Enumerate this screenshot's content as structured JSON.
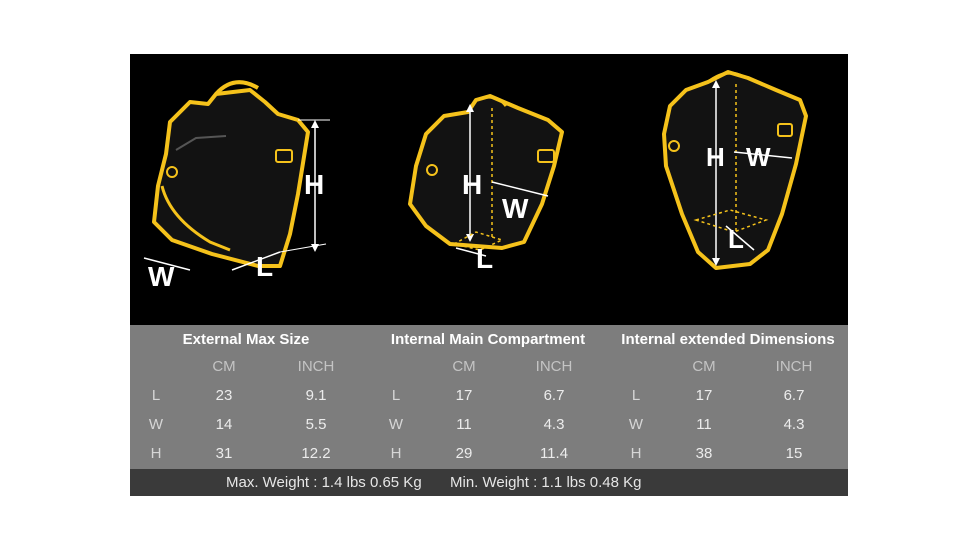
{
  "columns": [
    {
      "title": "External Max Size",
      "unit_cm": "CM",
      "unit_inch": "INCH",
      "rows": [
        {
          "label": "L",
          "cm": "23",
          "inch": "9.1"
        },
        {
          "label": "W",
          "cm": "14",
          "inch": "5.5"
        },
        {
          "label": "H",
          "cm": "31",
          "inch": "12.2"
        }
      ]
    },
    {
      "title": "Internal Main Compartment",
      "unit_cm": "CM",
      "unit_inch": "INCH",
      "rows": [
        {
          "label": "L",
          "cm": "17",
          "inch": "6.7"
        },
        {
          "label": "W",
          "cm": "11",
          "inch": "4.3"
        },
        {
          "label": "H",
          "cm": "29",
          "inch": "11.4"
        }
      ]
    },
    {
      "title": "Internal extended Dimensions",
      "unit_cm": "CM",
      "unit_inch": "INCH",
      "rows": [
        {
          "label": "L",
          "cm": "17",
          "inch": "6.7"
        },
        {
          "label": "W",
          "cm": "11",
          "inch": "4.3"
        },
        {
          "label": "H",
          "cm": "38",
          "inch": "15"
        }
      ]
    }
  ],
  "footer": {
    "max_weight": "Max. Weight : 1.4 lbs 0.65 Kg",
    "min_weight": "Min. Weight : 1.1 lbs 0.48 Kg"
  },
  "illustrations": [
    {
      "icon": "bag-external-dimensions-icon",
      "labels": [
        "H",
        "W",
        "L"
      ]
    },
    {
      "icon": "bag-internal-compartment-icon",
      "labels": [
        "H",
        "W",
        "L"
      ]
    },
    {
      "icon": "bag-extended-dimensions-icon",
      "labels": [
        "H",
        "W",
        "L"
      ]
    }
  ],
  "colors": {
    "outline": "#f5c21b",
    "panel": "#000000",
    "table": "#7d7d7d",
    "footer": "#3a3a3a"
  }
}
